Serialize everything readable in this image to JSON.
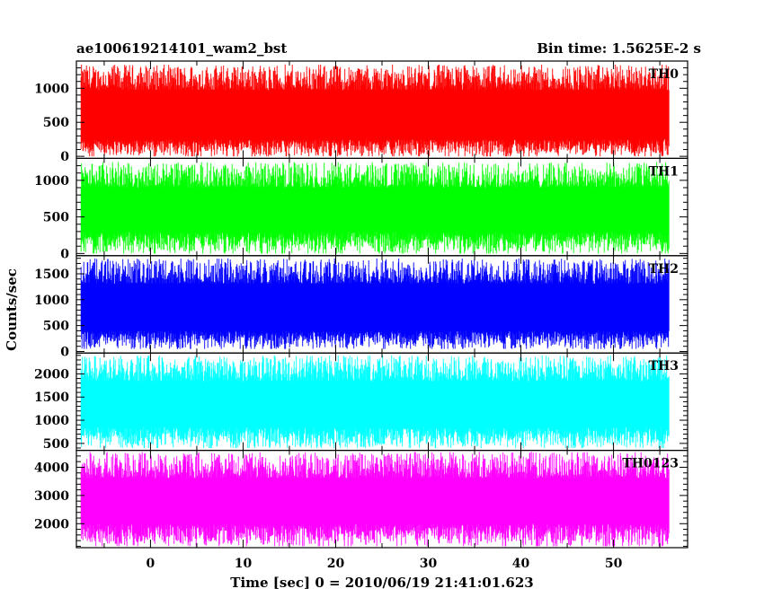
{
  "chart_data": {
    "type": "line",
    "title_left": "ae100619214101_wam2_bst",
    "title_right": "Bin time: 1.5625E-2 s",
    "xlabel": "Time [sec] 0 = 2010/06/19 21:41:01.623",
    "ylabel": "Counts/sec",
    "xlim": [
      -8,
      58
    ],
    "xticks": [
      "0",
      "10",
      "20",
      "30",
      "40",
      "50"
    ],
    "x_data_range": [
      -7.5,
      56
    ],
    "grid": false,
    "panels": [
      {
        "name": "TH0",
        "color": "#ff0000",
        "ylim": [
          -30,
          1400
        ],
        "yticks": [
          0,
          500,
          1000
        ],
        "ytick_labels": [
          "0",
          "500",
          "1000"
        ],
        "base": 250,
        "range_low": 0,
        "range_high": 1350
      },
      {
        "name": "TH1",
        "color": "#00ff00",
        "ylim": [
          -30,
          1300
        ],
        "yticks": [
          0,
          500,
          1000
        ],
        "ytick_labels": [
          "0",
          "500",
          "1000"
        ],
        "base": 300,
        "range_low": 0,
        "range_high": 1250
      },
      {
        "name": "TH2",
        "color": "#0000ff",
        "ylim": [
          -30,
          1850
        ],
        "yticks": [
          0,
          500,
          1000,
          1500
        ],
        "ytick_labels": [
          "0",
          "500",
          "1000",
          "1500"
        ],
        "base": 400,
        "range_low": 50,
        "range_high": 1800
      },
      {
        "name": "TH3",
        "color": "#00ffff",
        "ylim": [
          350,
          2450
        ],
        "yticks": [
          500,
          1000,
          1500,
          2000
        ],
        "ytick_labels": [
          "500",
          "1000",
          "1500",
          "2000"
        ],
        "base": 850,
        "range_low": 400,
        "range_high": 2400
      },
      {
        "name": "TH0123",
        "color": "#ff00ff",
        "ylim": [
          1150,
          4600
        ],
        "yticks": [
          2000,
          3000,
          4000
        ],
        "ytick_labels": [
          "2000",
          "3000",
          "4000"
        ],
        "base": 2000,
        "range_low": 1200,
        "range_high": 4550
      }
    ]
  }
}
